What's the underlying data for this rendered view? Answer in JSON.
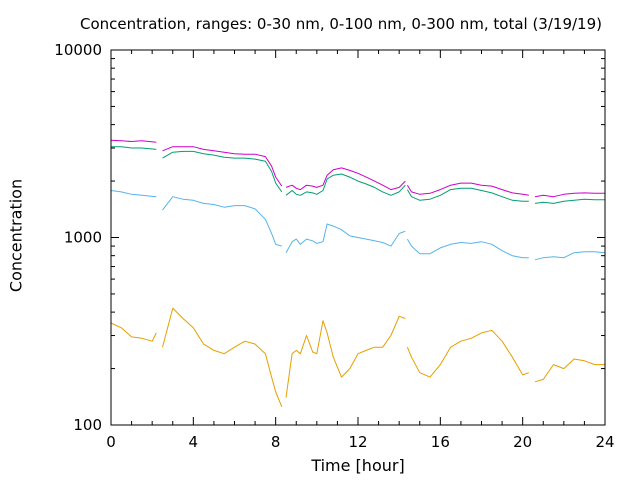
{
  "chart_data": {
    "type": "line",
    "title": "Concentration, ranges: 0-30 nm, 0-100 nm, 0-300 nm, total (3/19/19)",
    "xlabel": "Time [hour]",
    "ylabel": "Concentration",
    "xlim": [
      0,
      24
    ],
    "ylim": [
      100,
      10000
    ],
    "yscale": "log",
    "grid": false,
    "xticks": [
      0,
      4,
      8,
      12,
      16,
      20,
      24
    ],
    "xtick_labels": [
      "0",
      "4",
      "8",
      "12",
      "16",
      "20",
      "24"
    ],
    "yticks": [
      100,
      1000,
      10000
    ],
    "ytick_labels": [
      "100",
      "1000",
      "10000"
    ],
    "series": [
      {
        "color": "#cc00cc",
        "segments": [
          [
            [
              0,
              3300
            ],
            [
              0.5,
              3280
            ],
            [
              1,
              3250
            ],
            [
              1.5,
              3280
            ],
            [
              2.2,
              3220
            ]
          ],
          [
            [
              2.5,
              2900
            ],
            [
              3,
              3050
            ],
            [
              3.5,
              3050
            ],
            [
              4,
              3050
            ],
            [
              4.5,
              2950
            ],
            [
              5,
              2900
            ],
            [
              5.5,
              2850
            ],
            [
              6,
              2800
            ],
            [
              6.5,
              2780
            ],
            [
              7,
              2780
            ],
            [
              7.5,
              2700
            ],
            [
              7.8,
              2400
            ],
            [
              8,
              2100
            ],
            [
              8.3,
              1880
            ]
          ],
          [
            [
              8.5,
              1850
            ],
            [
              8.8,
              1900
            ],
            [
              9,
              1830
            ],
            [
              9.2,
              1800
            ],
            [
              9.5,
              1900
            ],
            [
              9.8,
              1880
            ],
            [
              10,
              1850
            ],
            [
              10.3,
              1900
            ],
            [
              10.5,
              2150
            ],
            [
              10.8,
              2300
            ],
            [
              11.2,
              2350
            ],
            [
              11.6,
              2280
            ],
            [
              12,
              2200
            ],
            [
              12.4,
              2100
            ],
            [
              12.8,
              2000
            ],
            [
              13.2,
              1900
            ],
            [
              13.6,
              1800
            ],
            [
              14,
              1850
            ],
            [
              14.3,
              2000
            ]
          ],
          [
            [
              14.4,
              1900
            ],
            [
              14.6,
              1750
            ],
            [
              15,
              1700
            ],
            [
              15.5,
              1720
            ],
            [
              16,
              1800
            ],
            [
              16.5,
              1900
            ],
            [
              17,
              1950
            ],
            [
              17.5,
              1950
            ],
            [
              18,
              1900
            ],
            [
              18.5,
              1880
            ],
            [
              19,
              1800
            ],
            [
              19.5,
              1730
            ],
            [
              20,
              1700
            ],
            [
              20.3,
              1680
            ]
          ],
          [
            [
              20.6,
              1650
            ],
            [
              21,
              1680
            ],
            [
              21.5,
              1650
            ],
            [
              22,
              1700
            ],
            [
              22.5,
              1720
            ],
            [
              23,
              1730
            ],
            [
              23.5,
              1720
            ],
            [
              24,
              1720
            ]
          ]
        ]
      },
      {
        "color": "#009e73",
        "segments": [
          [
            [
              0,
              3050
            ],
            [
              0.5,
              3050
            ],
            [
              1,
              3000
            ],
            [
              1.5,
              3000
            ],
            [
              2.2,
              2950
            ]
          ],
          [
            [
              2.5,
              2650
            ],
            [
              3,
              2850
            ],
            [
              3.5,
              2880
            ],
            [
              4,
              2880
            ],
            [
              4.5,
              2800
            ],
            [
              5,
              2750
            ],
            [
              5.5,
              2680
            ],
            [
              6,
              2650
            ],
            [
              6.5,
              2650
            ],
            [
              7,
              2620
            ],
            [
              7.5,
              2550
            ],
            [
              7.8,
              2250
            ],
            [
              8,
              1950
            ],
            [
              8.3,
              1750
            ]
          ],
          [
            [
              8.5,
              1680
            ],
            [
              8.8,
              1780
            ],
            [
              9,
              1700
            ],
            [
              9.2,
              1680
            ],
            [
              9.5,
              1750
            ],
            [
              9.8,
              1730
            ],
            [
              10,
              1700
            ],
            [
              10.3,
              1780
            ],
            [
              10.5,
              2050
            ],
            [
              10.8,
              2150
            ],
            [
              11.2,
              2180
            ],
            [
              11.6,
              2100
            ],
            [
              12,
              2000
            ],
            [
              12.4,
              1930
            ],
            [
              12.8,
              1850
            ],
            [
              13.2,
              1750
            ],
            [
              13.6,
              1680
            ],
            [
              14,
              1750
            ],
            [
              14.3,
              1900
            ]
          ],
          [
            [
              14.4,
              1800
            ],
            [
              14.6,
              1650
            ],
            [
              15,
              1580
            ],
            [
              15.5,
              1600
            ],
            [
              16,
              1680
            ],
            [
              16.5,
              1800
            ],
            [
              17,
              1830
            ],
            [
              17.5,
              1830
            ],
            [
              18,
              1780
            ],
            [
              18.5,
              1730
            ],
            [
              19,
              1650
            ],
            [
              19.5,
              1580
            ],
            [
              20,
              1560
            ],
            [
              20.3,
              1560
            ]
          ],
          [
            [
              20.6,
              1520
            ],
            [
              21,
              1540
            ],
            [
              21.5,
              1520
            ],
            [
              22,
              1560
            ],
            [
              22.5,
              1580
            ],
            [
              23,
              1600
            ],
            [
              23.5,
              1590
            ],
            [
              24,
              1590
            ]
          ]
        ]
      },
      {
        "color": "#56b4e9",
        "segments": [
          [
            [
              0,
              1780
            ],
            [
              0.5,
              1750
            ],
            [
              1,
              1700
            ],
            [
              1.5,
              1680
            ],
            [
              2.2,
              1650
            ]
          ],
          [
            [
              2.5,
              1400
            ],
            [
              3,
              1650
            ],
            [
              3.5,
              1600
            ],
            [
              4,
              1580
            ],
            [
              4.5,
              1520
            ],
            [
              5,
              1500
            ],
            [
              5.5,
              1450
            ],
            [
              6,
              1480
            ],
            [
              6.5,
              1480
            ],
            [
              7,
              1420
            ],
            [
              7.5,
              1250
            ],
            [
              7.8,
              1050
            ],
            [
              8,
              920
            ],
            [
              8.3,
              900
            ]
          ],
          [
            [
              8.5,
              830
            ],
            [
              8.8,
              950
            ],
            [
              9,
              980
            ],
            [
              9.2,
              920
            ],
            [
              9.5,
              980
            ],
            [
              9.8,
              960
            ],
            [
              10,
              930
            ],
            [
              10.3,
              950
            ],
            [
              10.5,
              1180
            ],
            [
              10.8,
              1150
            ],
            [
              11.2,
              1100
            ],
            [
              11.6,
              1020
            ],
            [
              12,
              1000
            ],
            [
              12.4,
              980
            ],
            [
              12.8,
              960
            ],
            [
              13.2,
              940
            ],
            [
              13.6,
              900
            ],
            [
              14,
              1050
            ],
            [
              14.3,
              1080
            ]
          ],
          [
            [
              14.4,
              980
            ],
            [
              14.6,
              900
            ],
            [
              15,
              820
            ],
            [
              15.5,
              820
            ],
            [
              16,
              880
            ],
            [
              16.5,
              920
            ],
            [
              17,
              940
            ],
            [
              17.5,
              930
            ],
            [
              18,
              950
            ],
            [
              18.5,
              920
            ],
            [
              19,
              850
            ],
            [
              19.5,
              800
            ],
            [
              20,
              780
            ],
            [
              20.3,
              780
            ]
          ],
          [
            [
              20.6,
              760
            ],
            [
              21,
              780
            ],
            [
              21.5,
              790
            ],
            [
              22,
              780
            ],
            [
              22.5,
              830
            ],
            [
              23,
              840
            ],
            [
              23.5,
              840
            ],
            [
              24,
              830
            ]
          ]
        ]
      },
      {
        "color": "#e69f00",
        "segments": [
          [
            [
              0,
              350
            ],
            [
              0.5,
              330
            ],
            [
              1,
              295
            ],
            [
              1.5,
              290
            ],
            [
              2,
              280
            ],
            [
              2.2,
              310
            ]
          ],
          [
            [
              2.5,
              260
            ],
            [
              3,
              420
            ],
            [
              3.5,
              370
            ],
            [
              4,
              330
            ],
            [
              4.5,
              270
            ],
            [
              5,
              250
            ],
            [
              5.5,
              240
            ],
            [
              6,
              260
            ],
            [
              6.5,
              280
            ],
            [
              7,
              270
            ],
            [
              7.5,
              240
            ],
            [
              7.8,
              180
            ],
            [
              8,
              150
            ],
            [
              8.3,
              125
            ]
          ],
          [
            [
              8.5,
              140
            ],
            [
              8.8,
              240
            ],
            [
              9,
              250
            ],
            [
              9.2,
              240
            ],
            [
              9.5,
              300
            ],
            [
              9.8,
              245
            ],
            [
              10,
              240
            ],
            [
              10.3,
              360
            ],
            [
              10.5,
              310
            ],
            [
              10.8,
              230
            ],
            [
              11.2,
              180
            ],
            [
              11.6,
              200
            ],
            [
              12,
              240
            ],
            [
              12.4,
              250
            ],
            [
              12.8,
              260
            ],
            [
              13.2,
              260
            ],
            [
              13.6,
              300
            ],
            [
              14,
              380
            ],
            [
              14.3,
              370
            ]
          ],
          [
            [
              14.4,
              260
            ],
            [
              14.6,
              230
            ],
            [
              15,
              190
            ],
            [
              15.5,
              180
            ],
            [
              16,
              210
            ],
            [
              16.5,
              260
            ],
            [
              17,
              280
            ],
            [
              17.5,
              290
            ],
            [
              18,
              310
            ],
            [
              18.5,
              320
            ],
            [
              19,
              280
            ],
            [
              19.5,
              230
            ],
            [
              20,
              185
            ],
            [
              20.3,
              190
            ]
          ],
          [
            [
              20.6,
              170
            ],
            [
              21,
              175
            ],
            [
              21.5,
              210
            ],
            [
              22,
              200
            ],
            [
              22.5,
              225
            ],
            [
              23,
              220
            ],
            [
              23.5,
              210
            ],
            [
              24,
              210
            ]
          ]
        ]
      }
    ]
  }
}
